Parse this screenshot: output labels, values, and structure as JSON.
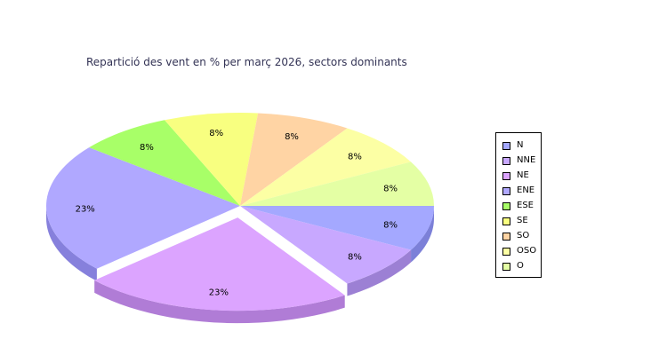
{
  "chart_data": {
    "type": "pie",
    "title": "Repartició des vent en % per març 2026, sectors dominants",
    "slices": [
      {
        "label": "N",
        "value": 8,
        "display": "8%",
        "color": "#a4a8ff",
        "side": "#7c80d8"
      },
      {
        "label": "NNE",
        "value": 8,
        "display": "8%",
        "color": "#c8a8ff",
        "side": "#9c80d4"
      },
      {
        "label": "NE",
        "value": 23,
        "display": "23%",
        "color": "#dca4ff",
        "side": "#b07cd6",
        "exploded": true
      },
      {
        "label": "ENE",
        "value": 23,
        "display": "23%",
        "color": "#b0a8ff",
        "side": "#8680dc"
      },
      {
        "label": "ESE",
        "value": 8,
        "display": "8%",
        "color": "#a8ff68",
        "side": "#80d450"
      },
      {
        "label": "SE",
        "value": 8,
        "display": "8%",
        "color": "#f8ff80",
        "side": "#d0d660"
      },
      {
        "label": "SO",
        "value": 8,
        "display": "8%",
        "color": "#ffd4a4",
        "side": "#d8ac80"
      },
      {
        "label": "OSO",
        "value": 8,
        "display": "8%",
        "color": "#fcffa4",
        "side": "#d4d680"
      },
      {
        "label": "O",
        "value": 8,
        "display": "8%",
        "color": "#e4ffa4",
        "side": "#bcd680"
      }
    ],
    "legend_position": "right"
  }
}
